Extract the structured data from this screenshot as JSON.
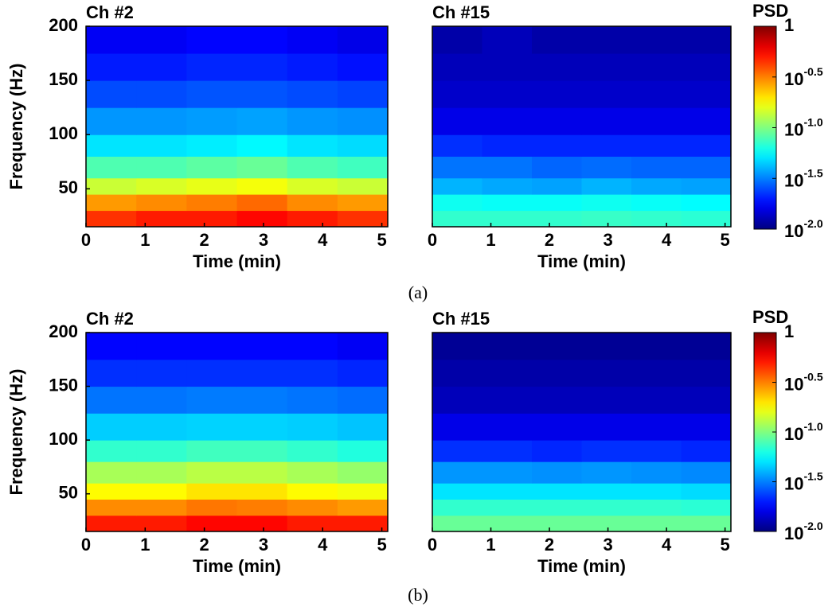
{
  "chart_data": [
    {
      "type": "heatmap",
      "title": "Ch #2",
      "xlabel": "Time (min)",
      "ylabel": "Frequency (Hz)",
      "xbins": [
        0,
        0.85,
        1.7,
        2.55,
        3.4,
        4.25,
        5.1
      ],
      "ybins": [
        15,
        30,
        45,
        60,
        80,
        100,
        125,
        150,
        175,
        200
      ],
      "xlim": [
        0,
        5.1
      ],
      "ylim": [
        15,
        200
      ],
      "xticks": [
        0,
        1,
        2,
        3,
        4,
        5
      ],
      "yticks": [
        50,
        100,
        150,
        200
      ],
      "values": [
        [
          0.45,
          0.5,
          0.5,
          0.55,
          0.5,
          0.45
        ],
        [
          0.28,
          0.3,
          0.32,
          0.35,
          0.3,
          0.28
        ],
        [
          0.14,
          0.15,
          0.16,
          0.17,
          0.15,
          0.14
        ],
        [
          0.08,
          0.08,
          0.085,
          0.09,
          0.08,
          0.075
        ],
        [
          0.05,
          0.05,
          0.052,
          0.055,
          0.05,
          0.048
        ],
        [
          0.035,
          0.035,
          0.036,
          0.037,
          0.035,
          0.034
        ],
        [
          0.025,
          0.025,
          0.026,
          0.026,
          0.025,
          0.024
        ],
        [
          0.02,
          0.02,
          0.021,
          0.021,
          0.02,
          0.019
        ],
        [
          0.017,
          0.017,
          0.018,
          0.018,
          0.017,
          0.016
        ]
      ]
    },
    {
      "type": "heatmap",
      "title": "Ch #15",
      "xlabel": "Time (min)",
      "xbins": [
        0,
        0.85,
        1.7,
        2.55,
        3.4,
        4.25,
        5.1
      ],
      "ybins": [
        15,
        30,
        45,
        60,
        80,
        100,
        125,
        150,
        175,
        200
      ],
      "xlim": [
        0,
        5.1
      ],
      "ylim": [
        15,
        200
      ],
      "xticks": [
        0,
        1,
        2,
        3,
        4,
        5
      ],
      "values": [
        [
          0.07,
          0.07,
          0.07,
          0.072,
          0.07,
          0.068
        ],
        [
          0.06,
          0.058,
          0.058,
          0.06,
          0.058,
          0.056
        ],
        [
          0.04,
          0.038,
          0.037,
          0.04,
          0.038,
          0.037
        ],
        [
          0.03,
          0.03,
          0.028,
          0.029,
          0.028,
          0.028
        ],
        [
          0.022,
          0.021,
          0.021,
          0.021,
          0.021,
          0.021
        ],
        [
          0.016,
          0.016,
          0.016,
          0.016,
          0.016,
          0.016
        ],
        [
          0.014,
          0.014,
          0.014,
          0.014,
          0.014,
          0.014
        ],
        [
          0.013,
          0.013,
          0.013,
          0.013,
          0.013,
          0.013
        ],
        [
          0.012,
          0.013,
          0.012,
          0.012,
          0.012,
          0.012
        ]
      ]
    },
    {
      "type": "heatmap",
      "title": "Ch #2",
      "xlabel": "Time (min)",
      "ylabel": "Frequency (Hz)",
      "xbins": [
        0,
        0.85,
        1.7,
        2.55,
        3.4,
        4.25,
        5.1
      ],
      "ybins": [
        15,
        30,
        45,
        60,
        80,
        100,
        125,
        150,
        175,
        200
      ],
      "xlim": [
        0,
        5.1
      ],
      "ylim": [
        15,
        200
      ],
      "xticks": [
        0,
        1,
        2,
        3,
        4,
        5
      ],
      "yticks": [
        50,
        100,
        150,
        200
      ],
      "values": [
        [
          0.5,
          0.5,
          0.55,
          0.55,
          0.5,
          0.5
        ],
        [
          0.3,
          0.3,
          0.33,
          0.32,
          0.3,
          0.28
        ],
        [
          0.18,
          0.18,
          0.2,
          0.2,
          0.18,
          0.17
        ],
        [
          0.12,
          0.12,
          0.13,
          0.13,
          0.12,
          0.11
        ],
        [
          0.07,
          0.07,
          0.075,
          0.075,
          0.07,
          0.065
        ],
        [
          0.045,
          0.045,
          0.046,
          0.046,
          0.045,
          0.043
        ],
        [
          0.03,
          0.03,
          0.031,
          0.031,
          0.03,
          0.029
        ],
        [
          0.022,
          0.022,
          0.022,
          0.022,
          0.022,
          0.021
        ],
        [
          0.018,
          0.018,
          0.018,
          0.018,
          0.018,
          0.017
        ]
      ]
    },
    {
      "type": "heatmap",
      "title": "Ch #15",
      "xlabel": "Time (min)",
      "xbins": [
        0,
        0.85,
        1.7,
        2.55,
        3.4,
        4.25,
        5.1
      ],
      "ybins": [
        15,
        30,
        45,
        60,
        80,
        100,
        125,
        150,
        175,
        200
      ],
      "xlim": [
        0,
        5.1
      ],
      "ylim": [
        15,
        200
      ],
      "xticks": [
        0,
        1,
        2,
        3,
        4,
        5
      ],
      "values": [
        [
          0.09,
          0.09,
          0.09,
          0.09,
          0.09,
          0.09
        ],
        [
          0.07,
          0.07,
          0.07,
          0.07,
          0.07,
          0.068
        ],
        [
          0.05,
          0.05,
          0.05,
          0.05,
          0.05,
          0.048
        ],
        [
          0.035,
          0.035,
          0.034,
          0.035,
          0.034,
          0.033
        ],
        [
          0.022,
          0.022,
          0.021,
          0.022,
          0.022,
          0.021
        ],
        [
          0.016,
          0.016,
          0.016,
          0.016,
          0.016,
          0.016
        ],
        [
          0.013,
          0.013,
          0.013,
          0.013,
          0.013,
          0.013
        ],
        [
          0.012,
          0.012,
          0.012,
          0.012,
          0.012,
          0.012
        ],
        [
          0.011,
          0.011,
          0.011,
          0.011,
          0.011,
          0.011
        ]
      ]
    },
    {
      "type": "colorbar",
      "title": "PSD",
      "log_scale": true,
      "zlim": [
        0.01,
        1
      ],
      "ticks": [
        1,
        {
          "value": 0.316,
          "label": "10",
          "exponent": "-0.5"
        },
        {
          "value": 0.1,
          "label": "10",
          "exponent": "-1.0"
        },
        {
          "value": 0.0316,
          "label": "10",
          "exponent": "-1.5"
        },
        {
          "value": 0.01,
          "label": "10",
          "exponent": "-2.0"
        }
      ]
    },
    {
      "type": "colorbar",
      "title": "PSD",
      "log_scale": true,
      "zlim": [
        0.01,
        1
      ],
      "ticks": [
        1,
        {
          "value": 0.316,
          "label": "10",
          "exponent": "-0.5"
        },
        {
          "value": 0.1,
          "label": "10",
          "exponent": "-1.0"
        },
        {
          "value": 0.0316,
          "label": "10",
          "exponent": "-1.5"
        },
        {
          "value": 0.01,
          "label": "10",
          "exponent": "-2.0"
        }
      ]
    }
  ],
  "panel_labels": [
    "(a)",
    "(b)"
  ]
}
